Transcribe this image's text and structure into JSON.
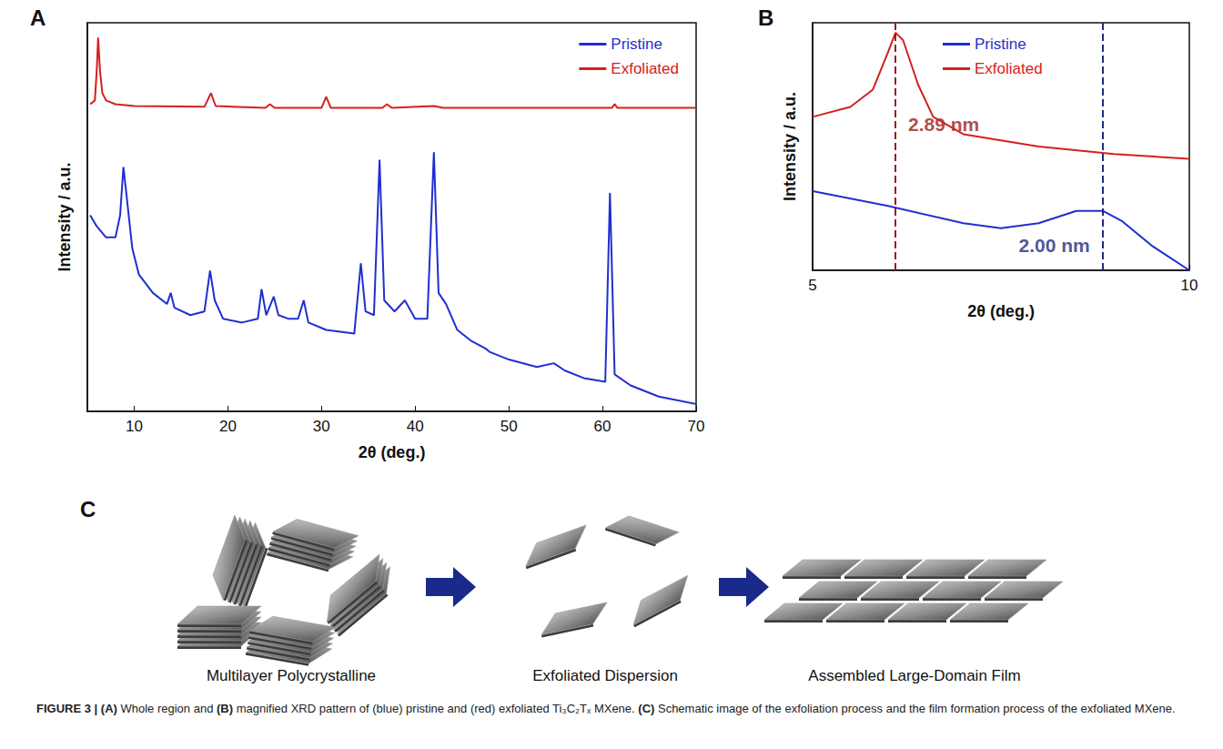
{
  "chart_data": [
    {
      "type": "line",
      "title": "A",
      "x_label": "2θ (deg.)",
      "y_label": "Intensity / a.u.",
      "xlim": [
        5,
        70
      ],
      "xticks": [
        10,
        20,
        30,
        40,
        50,
        60,
        70
      ],
      "ylim": [
        0,
        105
      ],
      "tick_labels": "x",
      "grid": false,
      "legend": "upper right",
      "series": [
        {
          "name": "Pristine",
          "color": "#1f2fd0",
          "x": [
            5.3,
            6,
            7,
            8,
            8.5,
            8.85,
            9.2,
            9.8,
            10.5,
            12,
            13.5,
            13.9,
            14.3,
            16,
            17.5,
            18.1,
            18.6,
            19.5,
            21.5,
            23.2,
            23.6,
            24.1,
            24.9,
            25.4,
            26.5,
            27.5,
            28.1,
            28.6,
            30.5,
            33.5,
            34.2,
            34.7,
            35.6,
            36.2,
            36.7,
            37.8,
            38.9,
            40,
            41.3,
            42.0,
            42.5,
            43.3,
            44.5,
            46,
            47.5,
            48,
            50,
            53,
            54.8,
            56,
            58,
            60.3,
            60.8,
            61.3,
            63,
            66,
            70
          ],
          "values": [
            53,
            50,
            47,
            47,
            53,
            66,
            58,
            44,
            37,
            32,
            29,
            32,
            28,
            26,
            27,
            38,
            30,
            25,
            24,
            25,
            33,
            26,
            31,
            26,
            25,
            25,
            30,
            24,
            22,
            21,
            40,
            27,
            26,
            68,
            30,
            27,
            30,
            25,
            25,
            70,
            32,
            29,
            22,
            19,
            17,
            16,
            14,
            12,
            13,
            11,
            9,
            8,
            59,
            10,
            7,
            4,
            2
          ]
        },
        {
          "name": "Exfoliated",
          "color": "#d42020",
          "x": [
            5.3,
            5.8,
            6.0,
            6.15,
            6.35,
            6.6,
            7,
            8,
            10,
            17.5,
            18.2,
            18.7,
            24,
            24.5,
            25,
            30,
            30.5,
            31,
            36.5,
            37,
            37.5,
            42,
            43,
            61,
            61.3,
            61.6,
            70
          ],
          "values": [
            83,
            84,
            92,
            101,
            92,
            86,
            84,
            83,
            82.5,
            82.3,
            86,
            82.5,
            82,
            83,
            82,
            82,
            85,
            82,
            82,
            83,
            82,
            82.5,
            82,
            82,
            83,
            82,
            82
          ]
        }
      ]
    },
    {
      "type": "line",
      "title": "B",
      "x_label": "2θ (deg.)",
      "y_label": "Intensity / a.u.",
      "xlim": [
        5,
        10
      ],
      "xticks": [
        5,
        10
      ],
      "ylim": [
        0,
        100
      ],
      "tick_labels": "x",
      "grid": false,
      "legend": "upper center",
      "series": [
        {
          "name": "Pristine",
          "color": "#1f2fd0",
          "x": [
            5,
            6,
            7,
            7.5,
            8,
            8.5,
            8.85,
            9.1,
            9.5,
            10
          ],
          "values": [
            32,
            26,
            19,
            17,
            19,
            24,
            24,
            20,
            10,
            0
          ]
        },
        {
          "name": "Exfoliated",
          "color": "#d42020",
          "x": [
            5,
            5.5,
            5.8,
            6.0,
            6.1,
            6.2,
            6.4,
            6.6,
            7,
            8,
            9,
            10
          ],
          "values": [
            62,
            66,
            73,
            88,
            96,
            93,
            75,
            62,
            55,
            50,
            47,
            45
          ]
        }
      ],
      "annotations": [
        {
          "text": "2.89 nm",
          "x": 6.1,
          "y": 59,
          "color": "#9b1c1c"
        },
        {
          "text": "2.00 nm",
          "x": 8.85,
          "y": 10,
          "color": "#1f2a80"
        }
      ]
    }
  ],
  "schematic": {
    "label": "C",
    "steps": [
      "Multilayer Polycrystalline",
      "Exfoliated Dispersion",
      "Assembled Large-Domain Film"
    ]
  },
  "caption": [
    {
      "text": "FIGURE 3 | ",
      "bold": true
    },
    {
      "text": "(A)",
      "bold": true
    },
    {
      "text": " Whole region and "
    },
    {
      "text": "(B)",
      "bold": true
    },
    {
      "text": " magnified XRD pattern of (blue) pristine and (red) exfoliated Ti₃C₂Tₓ MXene. "
    },
    {
      "text": "(C)",
      "bold": true
    },
    {
      "text": " Schematic image of the exfoliation process and the film formation process of the exfoliated MXene."
    }
  ]
}
